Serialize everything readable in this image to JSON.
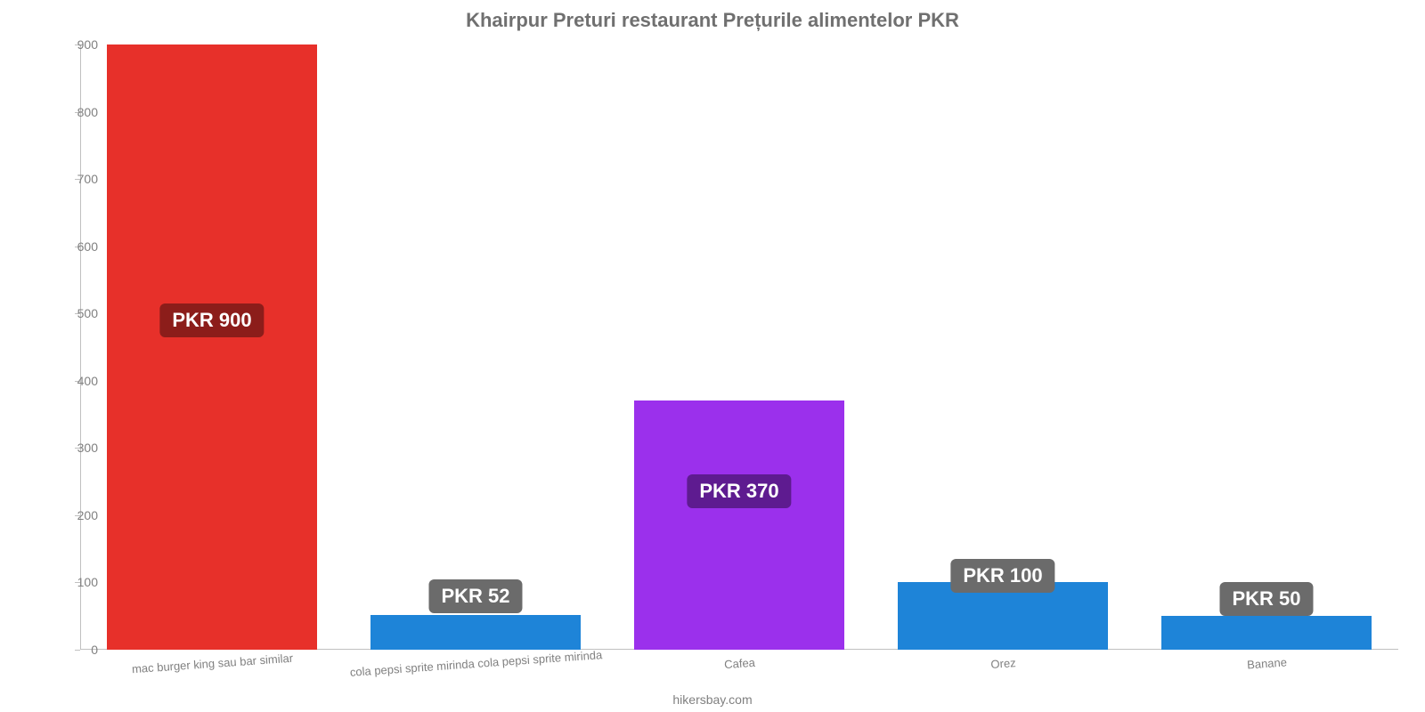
{
  "chart": {
    "type": "bar",
    "title": "Khairpur Preturi restaurant Prețurile alimentelor PKR",
    "title_color": "#707070",
    "title_fontsize": 22,
    "footer": "hikersbay.com",
    "footer_color": "#808080",
    "footer_fontsize": 14,
    "background_color": "#ffffff",
    "axis_color": "#c0c0c0",
    "tick_label_color": "#808080",
    "tick_fontsize": 14,
    "xcat_color": "#808080",
    "xcat_fontsize": 13,
    "ylim": [
      0,
      900
    ],
    "yticks": [
      0,
      100,
      200,
      300,
      400,
      500,
      600,
      700,
      800,
      900
    ],
    "bar_width_ratio": 0.8,
    "categories": [
      "mac burger king sau bar similar",
      "cola pepsi sprite mirinda cola pepsi sprite mirinda",
      "Cafea",
      "Orez",
      "Banane"
    ],
    "values": [
      900,
      52,
      370,
      100,
      50
    ],
    "value_labels": [
      "PKR 900",
      "PKR 52",
      "PKR 370",
      "PKR 100",
      "PKR 50"
    ],
    "bar_colors": [
      "#e7302a",
      "#1e84d8",
      "#9b30ec",
      "#1e84d8",
      "#1e84d8"
    ],
    "badge_bg_for_bar": [
      "#8c1d1a",
      "#6b6b6b",
      "#5e1b90",
      "#6b6b6b",
      "#6b6b6b"
    ],
    "badge_fontsize": 22,
    "badge_y_value": [
      490,
      80,
      235,
      110,
      75
    ]
  }
}
